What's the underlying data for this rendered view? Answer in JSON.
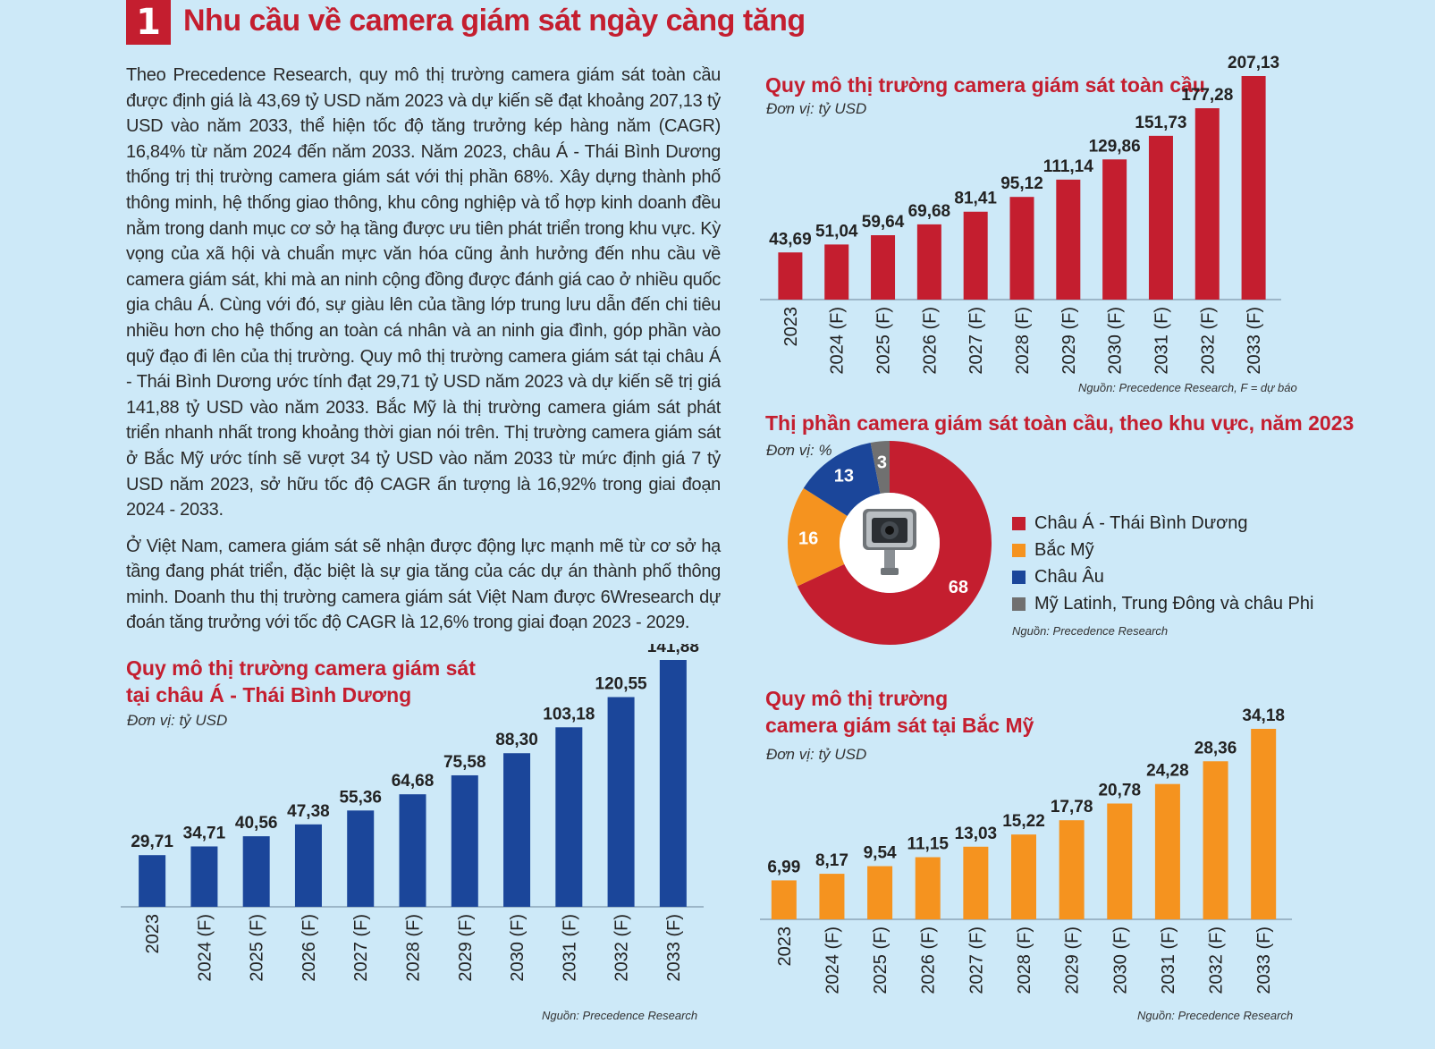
{
  "header": {
    "number": "1",
    "title": "Nhu cầu về camera giám sát ngày càng tăng"
  },
  "article": {
    "p1": "Theo Precedence Research, quy mô thị trường camera giám sát toàn cầu được định giá là 43,69 tỷ USD năm 2023 và dự kiến sẽ đạt khoảng 207,13 tỷ USD vào năm 2033, thể hiện tốc độ tăng trưởng kép hàng năm (CAGR) 16,84% từ năm 2024 đến năm 2033. Năm 2023, châu Á - Thái Bình Dương thống trị thị trường camera giám sát với thị phần 68%. Xây dựng thành phố thông minh, hệ thống giao thông, khu công nghiệp và tổ hợp kinh doanh đều nằm trong danh mục cơ sở hạ tầng được ưu tiên phát triển trong khu vực. Kỳ vọng của xã hội và chuẩn mực văn hóa cũng ảnh hưởng đến nhu cầu về camera giám sát, khi mà an ninh cộng đồng được đánh giá cao ở nhiều quốc gia châu Á. Cùng với đó, sự giàu lên của tầng lớp trung lưu dẫn đến chi tiêu nhiều hơn cho hệ thống an toàn cá nhân và an ninh gia đình, góp phần vào quỹ đạo đi lên của thị trường. Quy mô thị trường camera giám sát tại châu Á - Thái Bình Dương ước tính đạt 29,71 tỷ USD năm 2023 và dự kiến sẽ trị giá 141,88 tỷ USD vào năm 2033. Bắc Mỹ là thị trường camera giám sát phát triển nhanh nhất trong khoảng thời gian nói trên. Thị trường camera giám sát ở Bắc Mỹ ước tính sẽ vượt 34 tỷ USD vào năm 2033 từ mức định giá 7 tỷ USD năm 2023, sở hữu tốc độ CAGR ấn tượng là 16,92% trong giai đoạn 2024 - 2033.",
    "p2": "Ở Việt Nam, camera giám sát sẽ nhận được động lực mạnh mẽ từ cơ sở hạ tầng đang phát triển, đặc biệt là sự gia tăng của các dự án thành phố thông minh. Doanh thu thị trường camera giám sát Việt Nam được 6Wresearch dự đoán tăng trưởng với tốc độ CAGR là 12,6% trong giai đoạn 2023 - 2029."
  },
  "chart_data": [
    {
      "id": "global",
      "type": "bar",
      "title": "Quy mô thị trường camera giám sát toàn cầu",
      "unit": "Đơn vị: tỷ USD",
      "source": "Nguồn: Precedence Research, F = dự báo",
      "categories": [
        "2023",
        "2024 (F)",
        "2025 (F)",
        "2026 (F)",
        "2027 (F)",
        "2028 (F)",
        "2029 (F)",
        "2030 (F)",
        "2031 (F)",
        "2032 (F)",
        "2033 (F)"
      ],
      "values": [
        43.69,
        51.04,
        59.64,
        69.68,
        81.41,
        95.12,
        111.14,
        129.86,
        151.73,
        177.28,
        207.13
      ],
      "labels": [
        "43,69",
        "51,04",
        "59,64",
        "69,68",
        "81,41",
        "95,12",
        "111,14",
        "129,86",
        "151,73",
        "177,28",
        "207,13"
      ],
      "color": "#c41e2f"
    },
    {
      "id": "share",
      "type": "pie",
      "title": "Thị phần camera giám sát toàn cầu, theo khu vực, năm 2023",
      "unit": "Đơn vị: %",
      "source": "Nguồn: Precedence Research",
      "slices": [
        {
          "name": "Châu Á - Thái Bình Dương",
          "value": 68,
          "label": "68",
          "color": "#c41e2f"
        },
        {
          "name": "Bắc Mỹ",
          "value": 16,
          "label": "16",
          "color": "#f5931f"
        },
        {
          "name": "Châu Âu",
          "value": 13,
          "label": "13",
          "color": "#1b469a"
        },
        {
          "name": "Mỹ Latinh, Trung Đông và châu Phi",
          "value": 3,
          "label": "3",
          "color": "#707070"
        }
      ]
    },
    {
      "id": "apac",
      "type": "bar",
      "title_line1": "Quy mô thị trường camera giám sát",
      "title_line2": "tại châu Á - Thái Bình Dương",
      "unit": "Đơn vị: tỷ USD",
      "source": "Nguồn: Precedence Research",
      "categories": [
        "2023",
        "2024 (F)",
        "2025 (F)",
        "2026 (F)",
        "2027 (F)",
        "2028 (F)",
        "2029 (F)",
        "2030 (F)",
        "2031 (F)",
        "2032 (F)",
        "2033 (F)"
      ],
      "values": [
        29.71,
        34.71,
        40.56,
        47.38,
        55.36,
        64.68,
        75.58,
        88.3,
        103.18,
        120.55,
        141.88
      ],
      "labels": [
        "29,71",
        "34,71",
        "40,56",
        "47,38",
        "55,36",
        "64,68",
        "75,58",
        "88,30",
        "103,18",
        "120,55",
        "141,88"
      ],
      "color": "#1b469a"
    },
    {
      "id": "na",
      "type": "bar",
      "title_line1": "Quy mô thị trường",
      "title_line2": "camera giám sát tại Bắc Mỹ",
      "unit": "Đơn vị: tỷ USD",
      "source": "Nguồn: Precedence Research",
      "categories": [
        "2023",
        "2024 (F)",
        "2025 (F)",
        "2026 (F)",
        "2027 (F)",
        "2028 (F)",
        "2029 (F)",
        "2030 (F)",
        "2031 (F)",
        "2032 (F)",
        "2033 (F)"
      ],
      "values": [
        6.99,
        8.17,
        9.54,
        11.15,
        13.03,
        15.22,
        17.78,
        20.78,
        24.28,
        28.36,
        34.18
      ],
      "labels": [
        "6,99",
        "8,17",
        "9,54",
        "11,15",
        "13,03",
        "15,22",
        "17,78",
        "20,78",
        "24,28",
        "28,36",
        "34,18"
      ],
      "color": "#f5931f"
    }
  ]
}
